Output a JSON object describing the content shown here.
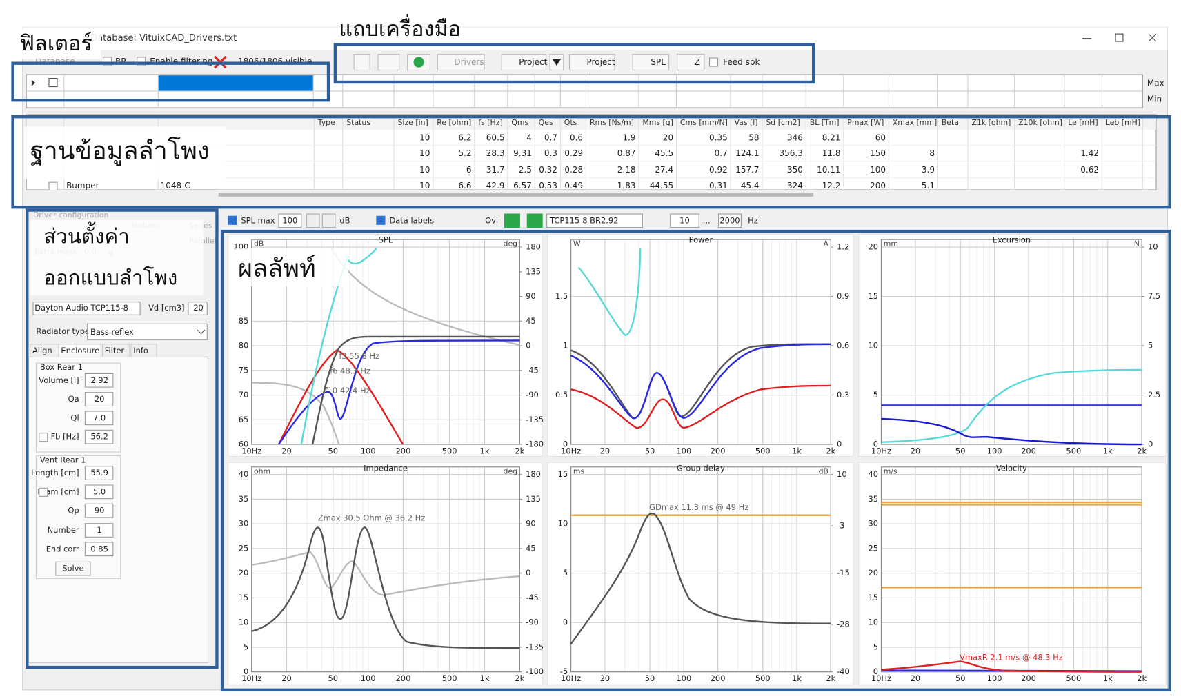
{
  "window": {
    "title": "Database: VituixCAD_Drivers.txt"
  },
  "annotations": {
    "filter": "ฟิลเตอร์",
    "toolbar": "แถบเครื่องมือ",
    "database": "ฐานข้อมูลลำโพง",
    "design": [
      "ส่วนตั้งค่า",
      "ออกแบบลำโพง"
    ],
    "results": "ผลลัพท์"
  },
  "filter_bar": {
    "menu": "Database",
    "br": "BR",
    "enable": "Enable filtering",
    "visible": "1806/1806 visible",
    "max": "Max",
    "min": "Min"
  },
  "toolbar": {
    "drivers": "Drivers",
    "project_open": "Project",
    "project_save": "Project",
    "spl": "SPL",
    "z": "Z",
    "feed": "Feed spk"
  },
  "table": {
    "columns": [
      "Type",
      "Status",
      "Size [in]",
      "Re [ohm]",
      "fs [Hz]",
      "Qms",
      "Qes",
      "Qts",
      "Rms [Ns/m]",
      "Mms [g]",
      "Cms [mm/N]",
      "Vas [l]",
      "Sd [cm2]",
      "BL [Tm]",
      "Pmax [W]",
      "Xmax [mm]",
      "Beta",
      "Z1k [ohm]",
      "Z10k [ohm]",
      "Le [mH]",
      "Leb [mH]"
    ],
    "rows": [
      {
        "cells": [
          10,
          6.2,
          60.5,
          4,
          0.7,
          0.6,
          1.9,
          20,
          0.35,
          58,
          346,
          8.21,
          60
        ]
      },
      {
        "cells": [
          10,
          5.2,
          28.3,
          9.31,
          0.3,
          0.29,
          0.87,
          45.5,
          0.7,
          124.1,
          356.3,
          11.8,
          150,
          8
        ],
        "le": 1.42
      },
      {
        "cells": [
          10,
          6,
          31.7,
          2.5,
          0.32,
          0.28,
          2.18,
          27.4,
          0.92,
          157.7,
          350,
          10.11,
          100,
          3.9
        ],
        "le": 0.62
      },
      {
        "name": "Bumper",
        "model": "1048-C",
        "cells": [
          10,
          6.6,
          42.9,
          6.57,
          0.53,
          0.49,
          1.83,
          44.55,
          0.31,
          45.4,
          324,
          12.2,
          200,
          5.1
        ]
      }
    ]
  },
  "design": {
    "driver_config": "Driver configuration",
    "isobaric": "Isobaric",
    "series": "Series",
    "parallel": "Parallel",
    "extra_mass": "Extra mass",
    "extra_mass_value": "0.0",
    "g": "g",
    "driver": "Dayton Audio TCP115-8",
    "vd": "Vd [cm3]",
    "vd_value": 20,
    "radiator_label": "Radiator type",
    "radiator": "Bass reflex",
    "tabs": [
      "Align",
      "Enclosure",
      "Filter",
      "Info"
    ],
    "box_group": "Box Rear 1",
    "box_fields": [
      {
        "label": "Volume [l]",
        "value": 2.92
      },
      {
        "label": "Qa",
        "value": 20
      },
      {
        "label": "Ql",
        "value": "7.0"
      },
      {
        "label": "Fb [Hz]",
        "value": 56.2
      }
    ],
    "vent_group": "Vent Rear 1",
    "vent_fields": [
      {
        "label": "Length [cm]",
        "value": 55.9
      },
      {
        "label": "Diam [cm]",
        "value": "5.0"
      },
      {
        "label": "Qp",
        "value": 90
      },
      {
        "label": "Number",
        "value": 1
      },
      {
        "label": "End corr",
        "value": 0.85
      }
    ],
    "solve": "Solve"
  },
  "graph_bar": {
    "spl_max": "SPL max",
    "spl_value": 100,
    "db": "dB",
    "data_labels": "Data labels",
    "ovl": "Ovl",
    "overlay": "TCP115-8 BR2.92",
    "f_min": 10,
    "range_sep": "...",
    "f_max": 2000,
    "hz": "Hz"
  },
  "plots": [
    {
      "title": "SPL",
      "unit": "dB",
      "unit2": "deg",
      "xlim": [
        10,
        2000
      ],
      "xticks": [
        {
          "value": 10,
          "label": "10Hz"
        },
        20,
        50,
        100,
        200,
        500,
        {
          "value": 1000,
          "label": "1k"
        },
        {
          "value": 2000,
          "label": "2k"
        }
      ],
      "ylim": [
        60,
        100
      ],
      "yticks": [
        60,
        65,
        70,
        75,
        80,
        85,
        100
      ],
      "y2lim": [
        -180,
        180
      ],
      "y2ticks": [
        -180,
        -135,
        -90,
        -45,
        0,
        45,
        90,
        135,
        180
      ],
      "labels": [
        "f3 55.8 Hz",
        "f6 48.3 Hz",
        "f10 42.4 Hz"
      ]
    },
    {
      "title": "Power",
      "unit": "W",
      "unit2": "A",
      "xlim": [
        10,
        2000
      ],
      "xticks": [
        {
          "value": 10,
          "label": "10Hz"
        },
        20,
        50,
        100,
        200,
        500,
        {
          "value": 1000,
          "label": "1k"
        },
        {
          "value": 2000,
          "label": "2k"
        }
      ],
      "ylim": [
        0,
        2
      ],
      "yticks": [
        0,
        0.5,
        1,
        1.5
      ],
      "y2lim": [
        0,
        1.2
      ],
      "y2ticks": [
        0,
        0.3,
        0.6,
        0.9,
        1.2
      ]
    },
    {
      "title": "Excursion",
      "unit": "mm",
      "unit2": "N",
      "xlim": [
        10,
        2000
      ],
      "xticks": [
        {
          "value": 10,
          "label": "10Hz"
        },
        20,
        50,
        100,
        200,
        500,
        {
          "value": 1000,
          "label": "1k"
        },
        {
          "value": 2000,
          "label": "2k"
        }
      ],
      "ylim": [
        0,
        20
      ],
      "yticks": [
        0,
        5,
        10,
        15,
        20
      ],
      "y2lim": [
        0,
        10
      ],
      "y2ticks": [
        0,
        2.5,
        5,
        7.5,
        10
      ]
    },
    {
      "title": "Impedance",
      "unit": "ohm",
      "unit2": "deg",
      "xlim": [
        10,
        2000
      ],
      "xticks": [
        {
          "value": 10,
          "label": "10Hz"
        },
        20,
        50,
        100,
        200,
        500,
        {
          "value": 1000,
          "label": "1k"
        },
        {
          "value": 2000,
          "label": "2k"
        }
      ],
      "ylim": [
        0,
        40
      ],
      "yticks": [
        0,
        5,
        10,
        15,
        20,
        25,
        30,
        35,
        40
      ],
      "y2lim": [
        -180,
        180
      ],
      "y2ticks": [
        -180,
        -135,
        -90,
        -45,
        0,
        45,
        90,
        135,
        180
      ],
      "labels": [
        "Zmax 30.5 Ohm @ 36.2 Hz"
      ]
    },
    {
      "title": "Group delay",
      "unit": "ms",
      "unit2": "dB",
      "xlim": [
        10,
        2000
      ],
      "xticks": [
        {
          "value": 10,
          "label": "10Hz"
        },
        20,
        50,
        100,
        200,
        500,
        {
          "value": 1000,
          "label": "1k"
        },
        {
          "value": 2000,
          "label": "2k"
        }
      ],
      "ylim": [
        -5,
        15
      ],
      "yticks": [
        -5,
        0,
        5,
        10,
        15
      ],
      "y2lim": [
        -40,
        10
      ],
      "y2ticks": [
        -40,
        -28,
        -15,
        -3,
        10
      ],
      "labels": [
        "GDmax 11.3 ms  @ 49 Hz"
      ]
    },
    {
      "title": "Velocity",
      "unit": "m/s",
      "xlim": [
        10,
        2000
      ],
      "xticks": [
        {
          "value": 10,
          "label": "10Hz"
        },
        20,
        50,
        100,
        200,
        500,
        {
          "value": 1000,
          "label": "1k"
        },
        {
          "value": 2000,
          "label": "2k"
        }
      ],
      "ylim": [
        0,
        40
      ],
      "yticks": [
        0,
        5,
        10,
        15,
        20,
        25,
        30,
        35,
        40
      ],
      "labels": [
        "VmaxR 2.1 m/s @ 48.3 Hz"
      ]
    }
  ]
}
